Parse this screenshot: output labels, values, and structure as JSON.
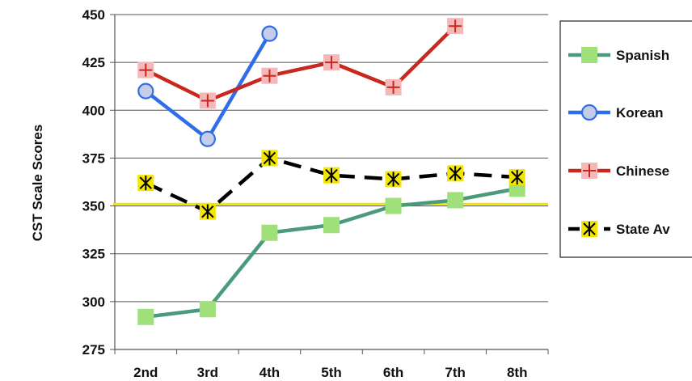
{
  "chart_data": {
    "type": "line",
    "title": "",
    "xlabel": "",
    "ylabel": "CST Scale Scores",
    "categories": [
      "2nd",
      "3rd",
      "4th",
      "5th",
      "6th",
      "7th",
      "8th"
    ],
    "ylim": [
      275,
      450
    ],
    "yticks": [
      275,
      300,
      325,
      350,
      375,
      400,
      425,
      450
    ],
    "grid": "horizontal",
    "legend_position": "right",
    "reference_line": {
      "value": 351,
      "color": "#f2e600"
    },
    "series": [
      {
        "name": "Spanish",
        "color": "#4a9a7c",
        "marker": "square",
        "marker_color": "#9fe07a",
        "dash": false,
        "values": [
          292,
          296,
          336,
          340,
          350,
          353,
          359
        ]
      },
      {
        "name": "Korean",
        "color": "#2f6ee8",
        "marker": "circle",
        "marker_color": "#c6cde8",
        "dash": false,
        "values": [
          410,
          385,
          440,
          null,
          null,
          null,
          null
        ]
      },
      {
        "name": "Chinese",
        "color": "#c8281e",
        "marker": "plus",
        "marker_color": "#f4b8b8",
        "dash": false,
        "values": [
          421,
          405,
          418,
          425,
          412,
          444,
          null
        ]
      },
      {
        "name": "State Av",
        "color": "#000000",
        "marker": "star",
        "marker_color": "#f2e600",
        "dash": true,
        "values": [
          362,
          347,
          375,
          366,
          364,
          367,
          365
        ]
      }
    ]
  }
}
